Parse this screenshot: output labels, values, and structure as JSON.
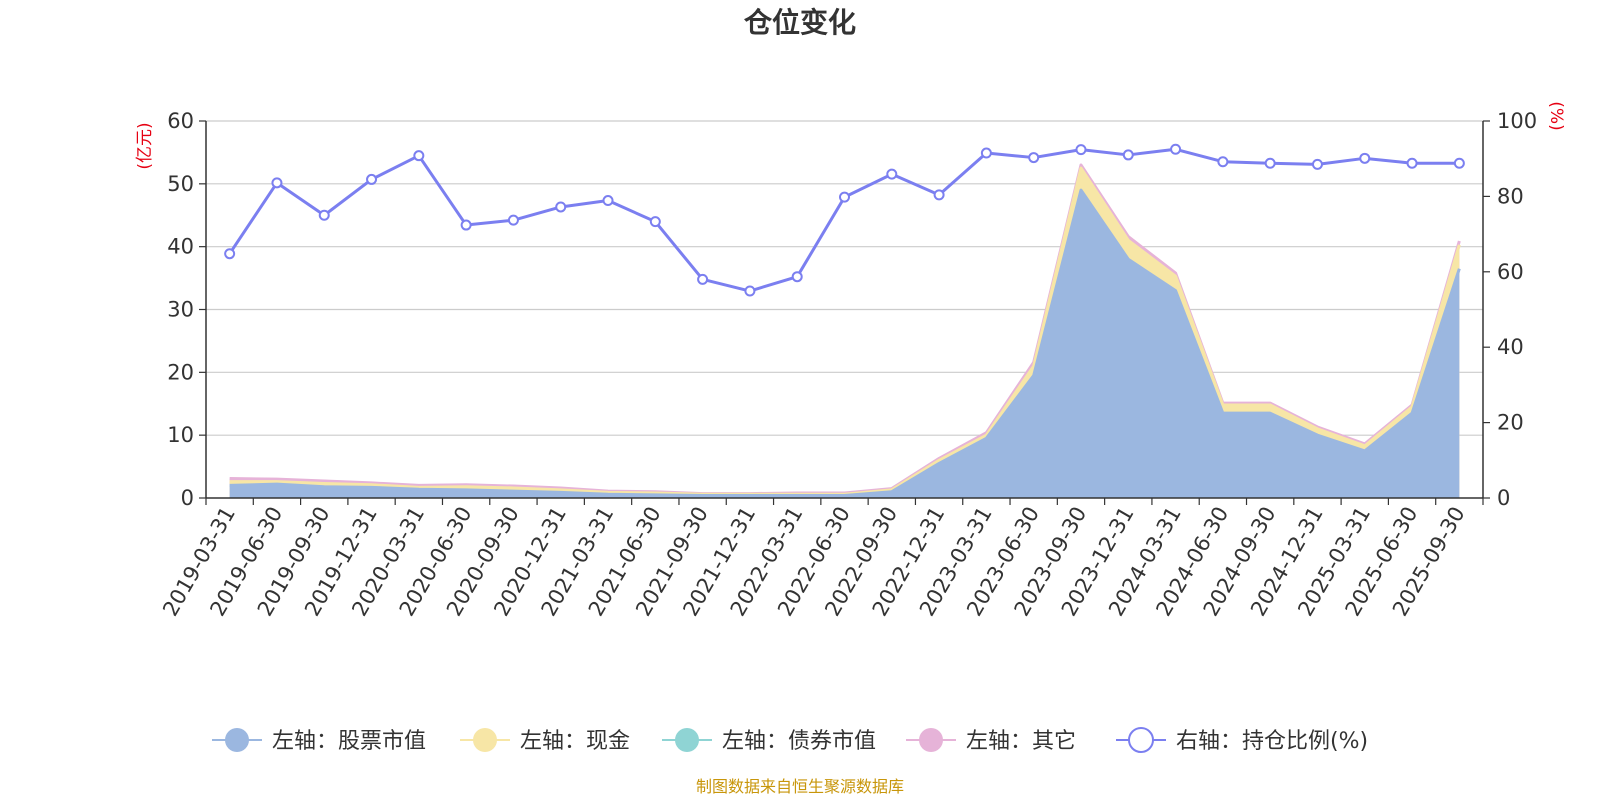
{
  "chart_data": {
    "type": "area",
    "title": "仓位变化",
    "left_unit": "(亿元)",
    "right_unit": "(%)",
    "left_ylim": [
      0,
      60
    ],
    "right_ylim": [
      0,
      100
    ],
    "left_ticks": [
      "0",
      "10",
      "20",
      "30",
      "40",
      "50",
      "60"
    ],
    "right_ticks": [
      "0",
      "20",
      "40",
      "60",
      "80",
      "100"
    ],
    "categories": [
      "2019-03-31",
      "2019-06-30",
      "2019-09-30",
      "2019-12-31",
      "2020-03-31",
      "2020-06-30",
      "2020-09-30",
      "2020-12-31",
      "2021-03-31",
      "2021-06-30",
      "2021-09-30",
      "2021-12-31",
      "2022-03-31",
      "2022-06-30",
      "2022-09-30",
      "2022-12-31",
      "2023-03-31",
      "2023-06-30",
      "2023-09-30",
      "2023-12-31",
      "2024-03-31",
      "2024-06-30",
      "2024-09-30",
      "2024-12-31",
      "2025-03-31",
      "2025-06-30",
      "2025-09-30"
    ],
    "series": [
      {
        "name": "左轴：股票市值",
        "axis": "left",
        "color": "#9bb7e0",
        "values": [
          2.0,
          2.2,
          1.8,
          1.7,
          1.4,
          1.3,
          1.1,
          0.9,
          0.6,
          0.5,
          0.4,
          0.4,
          0.4,
          0.4,
          1.0,
          5.5,
          9.5,
          19.5,
          49.0,
          38.0,
          33.0,
          13.5,
          13.5,
          10.0,
          7.5,
          13.5,
          36.5
        ]
      },
      {
        "name": "左轴：现金",
        "axis": "left",
        "color": "#f7e6a6",
        "values": [
          0.6,
          0.4,
          0.5,
          0.4,
          0.3,
          0.5,
          0.5,
          0.4,
          0.3,
          0.3,
          0.2,
          0.2,
          0.2,
          0.2,
          0.3,
          0.5,
          0.5,
          1.5,
          3.5,
          3.0,
          2.3,
          1.3,
          1.3,
          1.0,
          0.8,
          1.0,
          3.8
        ]
      },
      {
        "name": "左轴：债券市值",
        "axis": "left",
        "color": "#8fd4d4",
        "values": [
          0,
          0,
          0,
          0,
          0,
          0,
          0,
          0,
          0,
          0,
          0,
          0,
          0,
          0,
          0,
          0,
          0,
          0,
          0,
          0,
          0,
          0,
          0,
          0,
          0,
          0,
          0
        ]
      },
      {
        "name": "左轴：其它",
        "axis": "left",
        "color": "#e6b3d8",
        "values": [
          0.5,
          0.4,
          0.4,
          0.3,
          0.3,
          0.3,
          0.3,
          0.3,
          0.2,
          0.2,
          0.1,
          0.1,
          0.2,
          0.2,
          0.2,
          0.3,
          0.4,
          0.6,
          0.5,
          0.6,
          0.5,
          0.3,
          0.3,
          0.3,
          0.3,
          0.3,
          0.6
        ]
      },
      {
        "name": "右轴：持仓比例(%)",
        "axis": "right",
        "color": "#7b7ff0",
        "values": [
          64.8,
          83.6,
          75.0,
          84.5,
          90.8,
          72.4,
          73.7,
          77.2,
          78.9,
          73.3,
          58.0,
          54.9,
          58.7,
          79.8,
          85.9,
          80.4,
          91.5,
          90.3,
          92.4,
          91.0,
          92.5,
          89.2,
          88.8,
          88.5,
          90.1,
          88.8,
          88.8
        ]
      }
    ]
  },
  "legend": [
    {
      "label": "左轴：股票市值",
      "color": "#9bb7e0",
      "style": "filled"
    },
    {
      "label": "左轴：现金",
      "color": "#f7e6a6",
      "style": "filled"
    },
    {
      "label": "左轴：债券市值",
      "color": "#8fd4d4",
      "style": "filled"
    },
    {
      "label": "左轴：其它",
      "color": "#e6b3d8",
      "style": "filled"
    },
    {
      "label": "右轴：持仓比例(%)",
      "color": "#7b7ff0",
      "style": "hollow"
    }
  ],
  "source": "制图数据来自恒生聚源数据库"
}
